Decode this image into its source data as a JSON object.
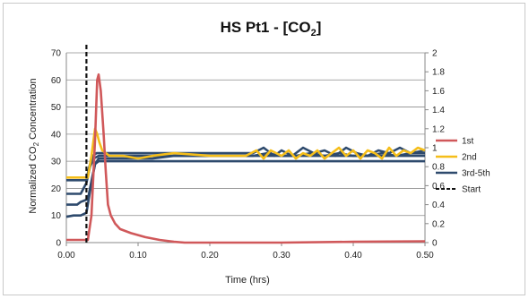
{
  "chart_data": {
    "type": "line",
    "title": {
      "main": "HS Pt1 - [CO",
      "sub": "2",
      "close": "]"
    },
    "xlabel": "Time (hrs)",
    "ylabel": {
      "before": "Normalized CO",
      "sub": "2",
      "after": " Concentration"
    },
    "xlim": [
      0,
      0.5
    ],
    "ylim": [
      0,
      70
    ],
    "y2lim": [
      0,
      2
    ],
    "xticks": [
      "0.00",
      "0.10",
      "0.20",
      "0.30",
      "0.40",
      "0.50"
    ],
    "xtick_values": [
      0,
      0.1,
      0.2,
      0.3,
      0.4,
      0.5
    ],
    "yticks": [
      "0",
      "10",
      "20",
      "30",
      "40",
      "50",
      "60",
      "70"
    ],
    "ytick_values": [
      0,
      10,
      20,
      30,
      40,
      50,
      60,
      70
    ],
    "y2ticks": [
      "0",
      "0.2",
      "0.4",
      "0.6",
      "0.8",
      "1",
      "1.2",
      "1.4",
      "1.6",
      "1.8",
      "2"
    ],
    "y2tick_values": [
      0,
      0.2,
      0.4,
      0.6,
      0.8,
      1,
      1.2,
      1.4,
      1.6,
      1.8,
      2
    ],
    "grid": "horizontal",
    "legend_position": "right",
    "series": [
      {
        "name": "1st",
        "color": "#d0585a",
        "dash": false,
        "axis": "left",
        "x": [
          0,
          0.03,
          0.035,
          0.04,
          0.043,
          0.045,
          0.048,
          0.052,
          0.055,
          0.058,
          0.062,
          0.068,
          0.075,
          0.09,
          0.11,
          0.13,
          0.15,
          0.165,
          0.2,
          0.3,
          0.4,
          0.5
        ],
        "y": [
          1,
          1,
          10,
          38,
          60,
          62,
          56,
          40,
          26,
          14,
          10,
          7,
          5,
          3.5,
          2,
          1,
          0.3,
          0,
          0,
          0,
          0.3,
          0.5
        ]
      },
      {
        "name": "2nd",
        "color": "#f5be1a",
        "dash": false,
        "axis": "left",
        "x": [
          0,
          0.025,
          0.03,
          0.035,
          0.04,
          0.043,
          0.046,
          0.05,
          0.06,
          0.08,
          0.1,
          0.12,
          0.15,
          0.2,
          0.25,
          0.265,
          0.275,
          0.285,
          0.3,
          0.31,
          0.32,
          0.33,
          0.34,
          0.35,
          0.36,
          0.37,
          0.38,
          0.39,
          0.4,
          0.41,
          0.42,
          0.43,
          0.44,
          0.45,
          0.46,
          0.47,
          0.48,
          0.49,
          0.5
        ],
        "y": [
          24,
          24,
          24,
          32,
          42,
          40,
          37,
          34,
          32,
          32,
          31,
          32,
          33,
          32,
          32,
          34,
          31,
          34,
          32,
          34,
          31,
          33,
          32,
          34,
          31,
          33,
          35,
          32,
          34,
          31,
          34,
          33,
          31,
          35,
          32,
          34,
          33,
          35,
          34
        ]
      },
      {
        "name": "3rd-5th",
        "color": "#2e4a6d",
        "dash": false,
        "axis": "left",
        "x": [
          0,
          0.02,
          0.028,
          0.033,
          0.038,
          0.045,
          0.06,
          0.1,
          0.15,
          0.2,
          0.25,
          0.3,
          0.35,
          0.4,
          0.45,
          0.5
        ],
        "y": [
          18,
          18,
          22,
          28,
          31,
          32,
          32,
          32,
          32,
          32,
          32,
          32,
          32,
          32,
          32,
          32
        ]
      },
      {
        "name": "",
        "color": "#2e4a6d",
        "dash": false,
        "axis": "left",
        "x": [
          0,
          0.02,
          0.028,
          0.032,
          0.037,
          0.042,
          0.06,
          0.1,
          0.15,
          0.2,
          0.26,
          0.275,
          0.29,
          0.3,
          0.315,
          0.33,
          0.345,
          0.36,
          0.375,
          0.39,
          0.405,
          0.42,
          0.435,
          0.45,
          0.465,
          0.48,
          0.5
        ],
        "y": [
          23,
          23,
          23,
          28,
          32,
          33,
          33,
          33,
          33,
          33,
          33,
          35,
          32,
          34,
          32,
          35,
          33,
          34,
          32,
          35,
          33,
          32,
          34,
          33,
          35,
          33,
          34
        ]
      },
      {
        "name": "",
        "color": "#2e4a6d",
        "dash": false,
        "axis": "left",
        "x": [
          0,
          0.015,
          0.02,
          0.03,
          0.036,
          0.04,
          0.045,
          0.06,
          0.1,
          0.12,
          0.15,
          0.2,
          0.26,
          0.28,
          0.3,
          0.32,
          0.34,
          0.36,
          0.38,
          0.4,
          0.42,
          0.44,
          0.46,
          0.48,
          0.5
        ],
        "y": [
          14,
          14,
          15,
          16,
          24,
          29,
          31,
          31,
          31,
          31,
          32,
          32,
          32,
          33,
          32,
          32,
          33,
          32,
          33,
          32,
          32,
          33,
          32,
          33,
          33
        ]
      },
      {
        "name": "",
        "color": "#2e4a6d",
        "dash": false,
        "axis": "left",
        "x": [
          0,
          0.01,
          0.02,
          0.028,
          0.035,
          0.04,
          0.045,
          0.06,
          0.08,
          0.1,
          0.15,
          0.2,
          0.3,
          0.4,
          0.5
        ],
        "y": [
          9.5,
          10,
          10,
          11,
          22,
          29,
          30,
          30,
          30,
          30,
          30,
          30,
          30,
          30,
          30
        ]
      },
      {
        "name": "Start",
        "color": "#111111",
        "dash": true,
        "axis": "left",
        "x": [
          0.028,
          0.028
        ],
        "y": [
          0,
          73
        ]
      }
    ]
  }
}
